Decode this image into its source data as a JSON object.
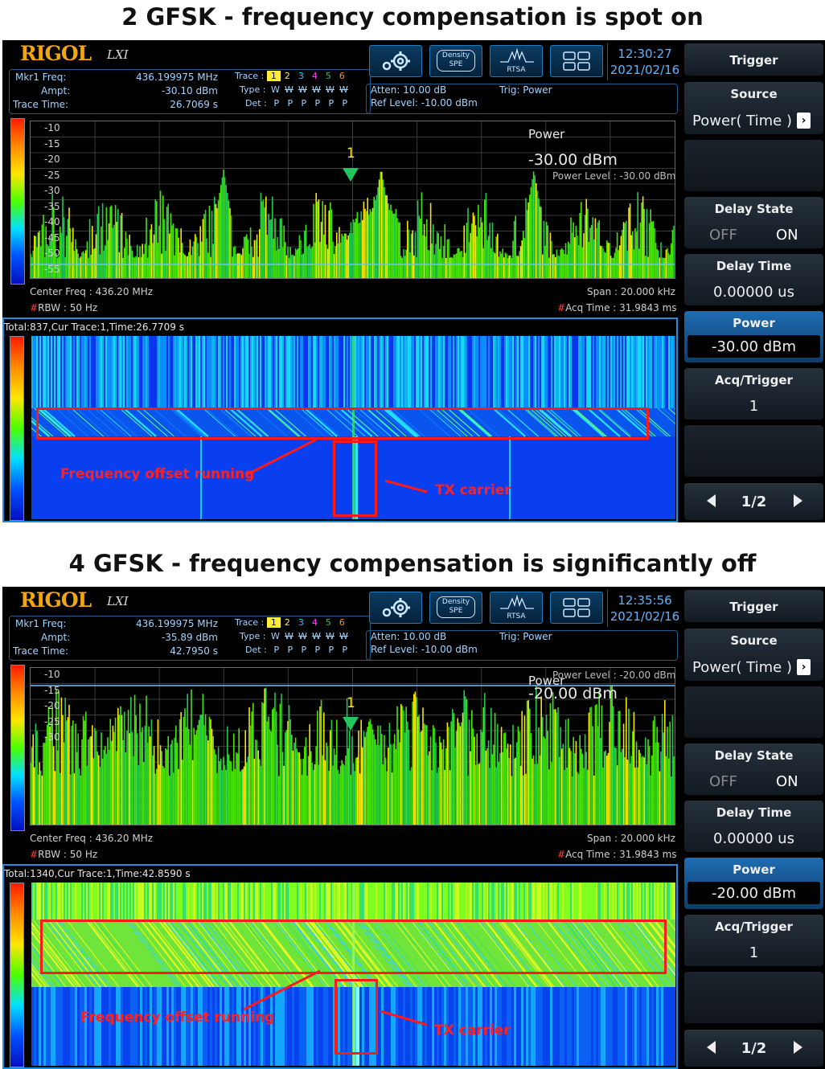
{
  "captions": {
    "top": "2 GFSK - frequency compensation is spot on",
    "bottom": "4 GFSK - frequency compensation is significantly off"
  },
  "panels": [
    {
      "logo": "RIGOL",
      "logo_suffix": "LXI",
      "marker": {
        "freq_label": "Mkr1 Freq:",
        "freq_value": "436.199975 MHz",
        "ampt_label": "Ampt:",
        "ampt_value": "-30.10 dBm",
        "time_label": "Trace Time:",
        "time_value": "26.7069 s"
      },
      "trace": {
        "trace_label": "Trace :",
        "numbers": [
          "1",
          "2",
          "3",
          "4",
          "5",
          "6"
        ],
        "type_label": "Type :",
        "types": [
          "W",
          "W",
          "W",
          "W",
          "W",
          "W"
        ],
        "det_label": "Det :",
        "dets": [
          "P",
          "P",
          "P",
          "P",
          "P",
          "P"
        ]
      },
      "atten": "Atten: 10.00 dB",
      "ref_level": "Ref Level: -10.00 dBm",
      "trig": "Trig: Power",
      "toolbar": {
        "density_top": "Density",
        "density_bottom": "SPE",
        "rtsa": "RTSA"
      },
      "clock": {
        "time": "12:30:27",
        "date": "2021/02/16"
      },
      "yticks": [
        "-10",
        "-15",
        "-20",
        "-25",
        "-30",
        "-35",
        "-40",
        "-45",
        "-50",
        "-55"
      ],
      "power_title": "Power",
      "power_value": "-30.00 dBm",
      "power_level": "Power Level : -30.00 dBm",
      "marker_num": "1",
      "center_freq": "Center Freq : 436.20 MHz",
      "rbw_hash": "#",
      "rbw": "RBW : 50 Hz",
      "span": "Span : 20.000 kHz",
      "acq_hash": "#",
      "acq": "Acq Time : 31.9843 ms",
      "waterfall_header": "Total:837,Cur Trace:1,Time:26.7709 s",
      "annotation_offset": "Frequency offset running",
      "annotation_carrier": "TX carrier",
      "sidebar": {
        "trigger": "Trigger",
        "source": "Source",
        "source_value": "Power( Time )",
        "delay_state": "Delay State",
        "off": "OFF",
        "on": "ON",
        "delay_time": "Delay Time",
        "delay_value": "0.00000 us",
        "power": "Power",
        "power_value": "-30.00 dBm",
        "acq_trigger": "Acq/Trigger",
        "acq_value": "1",
        "page": "1/2"
      }
    },
    {
      "logo": "RIGOL",
      "logo_suffix": "LXI",
      "marker": {
        "freq_label": "Mkr1 Freq:",
        "freq_value": "436.199975 MHz",
        "ampt_label": "Ampt:",
        "ampt_value": "-35.89 dBm",
        "time_label": "Trace Time:",
        "time_value": "42.7950 s"
      },
      "trace": {
        "trace_label": "Trace :",
        "numbers": [
          "1",
          "2",
          "3",
          "4",
          "5",
          "6"
        ],
        "type_label": "Type :",
        "types": [
          "W",
          "W",
          "W",
          "W",
          "W",
          "W"
        ],
        "det_label": "Det :",
        "dets": [
          "P",
          "P",
          "P",
          "P",
          "P",
          "P"
        ]
      },
      "atten": "Atten: 10.00 dB",
      "ref_level": "Ref Level: -10.00 dBm",
      "trig": "Trig: Power",
      "toolbar": {
        "density_top": "Density",
        "density_bottom": "SPE",
        "rtsa": "RTSA"
      },
      "clock": {
        "time": "12:35:56",
        "date": "2021/02/16"
      },
      "yticks": [
        "-10",
        "-15",
        "-20",
        "-25",
        "-30"
      ],
      "power_title": "Power",
      "power_value": "-20.00 dBm",
      "power_level": "Power Level : -20.00 dBm",
      "marker_num": "1",
      "center_freq": "Center Freq : 436.20 MHz",
      "rbw_hash": "#",
      "rbw": "RBW : 50 Hz",
      "span": "Span : 20.000 kHz",
      "acq_hash": "#",
      "acq": "Acq Time : 31.9843 ms",
      "waterfall_header": "Total:1340,Cur Trace:1,Time:42.8590 s",
      "annotation_offset": "Frequency offset running",
      "annotation_carrier": "TX carrier",
      "sidebar": {
        "trigger": "Trigger",
        "source": "Source",
        "source_value": "Power( Time )",
        "delay_state": "Delay State",
        "off": "OFF",
        "on": "ON",
        "delay_time": "Delay Time",
        "delay_value": "0.00000 us",
        "power": "Power",
        "power_value": "-20.00 dBm",
        "acq_trigger": "Acq/Trigger",
        "acq_value": "1",
        "page": "1/2"
      }
    }
  ]
}
